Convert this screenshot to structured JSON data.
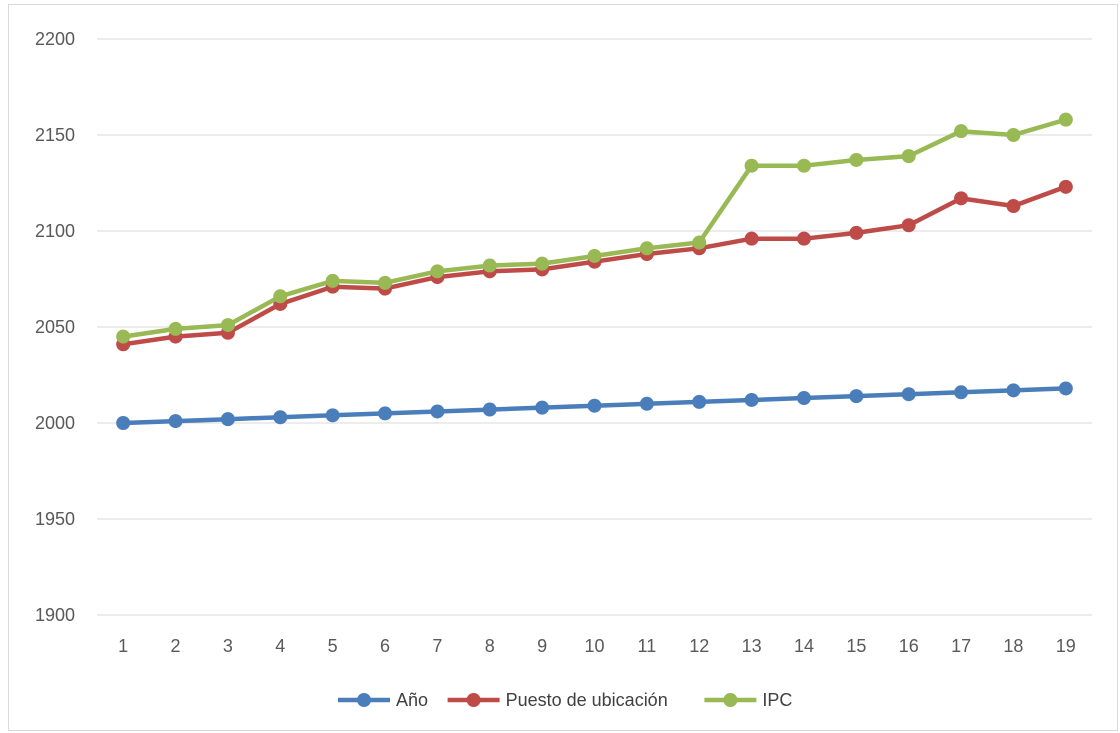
{
  "chart_data": {
    "type": "line",
    "title": "",
    "xlabel": "",
    "ylabel": "",
    "categories": [
      "1",
      "2",
      "3",
      "4",
      "5",
      "6",
      "7",
      "8",
      "9",
      "10",
      "11",
      "12",
      "13",
      "14",
      "15",
      "16",
      "17",
      "18",
      "19"
    ],
    "ylim": [
      1900,
      2200
    ],
    "yticks": [
      1900,
      1950,
      2000,
      2050,
      2100,
      2150,
      2200
    ],
    "grid": true,
    "legend_position": "bottom",
    "series": [
      {
        "name": "Año",
        "color": "#4a7ebb",
        "values": [
          2000,
          2001,
          2002,
          2003,
          2004,
          2005,
          2006,
          2007,
          2008,
          2009,
          2010,
          2011,
          2012,
          2013,
          2014,
          2015,
          2016,
          2017,
          2018
        ]
      },
      {
        "name": "Puesto de ubicación",
        "color": "#be4b48",
        "values": [
          2041,
          2045,
          2047,
          2062,
          2071,
          2070,
          2076,
          2079,
          2080,
          2084,
          2088,
          2091,
          2096,
          2096,
          2099,
          2103,
          2117,
          2113,
          2123
        ]
      },
      {
        "name": "IPC",
        "color": "#98b954",
        "values": [
          2045,
          2049,
          2051,
          2066,
          2074,
          2073,
          2079,
          2082,
          2083,
          2087,
          2091,
          2094,
          2134,
          2134,
          2137,
          2139,
          2152,
          2150,
          2158
        ]
      }
    ]
  }
}
